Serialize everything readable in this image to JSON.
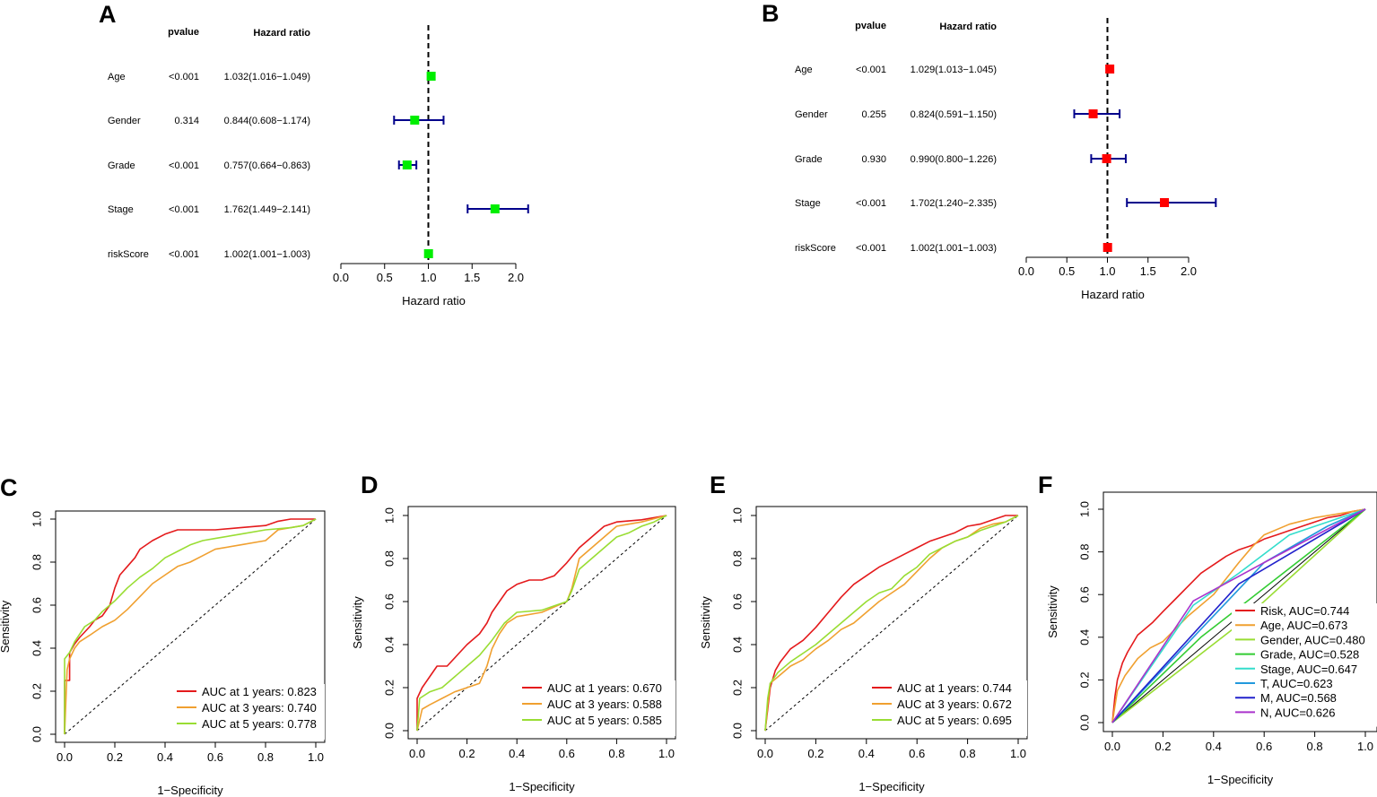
{
  "colors": {
    "axis": "#000000",
    "ci": "#00008b",
    "forest_a_marker": "#00ee00",
    "forest_b_marker": "#ff0000",
    "auc_1": "#e41a1c",
    "auc_3": "#f0a030",
    "auc_5": "#99dd33",
    "risk": "#e41a1c",
    "age": "#f0a030",
    "gender": "#99dd33",
    "grade": "#33cc33",
    "stage": "#33ddcc",
    "t": "#2299dd",
    "m": "#2222cc",
    "n": "#aa33cc"
  },
  "chart_data": [
    {
      "panel": "A",
      "type": "forest",
      "col_pvalue": "pvalue",
      "col_hr": "Hazard ratio",
      "xlabel": "Hazard ratio",
      "xlim": [
        0,
        2
      ],
      "xticks": [
        "0.0",
        "0.5",
        "1.0",
        "1.5",
        "2.0"
      ],
      "reference": 1,
      "rows": [
        {
          "label": "Age",
          "pvalue": "<0.001",
          "hr_text": "1.032(1.016−1.049)",
          "hr": 1.032,
          "lo": 1.016,
          "hi": 1.049
        },
        {
          "label": "Gender",
          "pvalue": "0.314",
          "hr_text": "0.844(0.608−1.174)",
          "hr": 0.844,
          "lo": 0.608,
          "hi": 1.174
        },
        {
          "label": "Grade",
          "pvalue": "<0.001",
          "hr_text": "0.757(0.664−0.863)",
          "hr": 0.757,
          "lo": 0.664,
          "hi": 0.863
        },
        {
          "label": "Stage",
          "pvalue": "<0.001",
          "hr_text": "1.762(1.449−2.141)",
          "hr": 1.762,
          "lo": 1.449,
          "hi": 2.141
        },
        {
          "label": "riskScore",
          "pvalue": "<0.001",
          "hr_text": "1.002(1.001−1.003)",
          "hr": 1.002,
          "lo": 1.001,
          "hi": 1.003
        }
      ]
    },
    {
      "panel": "B",
      "type": "forest",
      "col_pvalue": "pvalue",
      "col_hr": "Hazard ratio",
      "xlabel": "Hazard ratio",
      "xlim": [
        0,
        2
      ],
      "xticks": [
        "0.0",
        "0.5",
        "1.0",
        "1.5",
        "2.0"
      ],
      "reference": 1,
      "rows": [
        {
          "label": "Age",
          "pvalue": "<0.001",
          "hr_text": "1.029(1.013−1.045)",
          "hr": 1.029,
          "lo": 1.013,
          "hi": 1.045
        },
        {
          "label": "Gender",
          "pvalue": "0.255",
          "hr_text": "0.824(0.591−1.150)",
          "hr": 0.824,
          "lo": 0.591,
          "hi": 1.15
        },
        {
          "label": "Grade",
          "pvalue": "0.930",
          "hr_text": "0.990(0.800−1.226)",
          "hr": 0.99,
          "lo": 0.8,
          "hi": 1.226
        },
        {
          "label": "Stage",
          "pvalue": "<0.001",
          "hr_text": "1.702(1.240−2.335)",
          "hr": 1.702,
          "lo": 1.24,
          "hi": 2.335
        },
        {
          "label": "riskScore",
          "pvalue": "<0.001",
          "hr_text": "1.002(1.001−1.003)",
          "hr": 1.002,
          "lo": 1.001,
          "hi": 1.003
        }
      ]
    },
    {
      "panel": "C",
      "type": "line",
      "xlabel": "1−Specificity",
      "ylabel": "Sensitivity",
      "xlim": [
        0,
        1
      ],
      "ylim": [
        0,
        1
      ],
      "xticks": [
        "0.0",
        "0.2",
        "0.4",
        "0.6",
        "0.8",
        "1.0"
      ],
      "yticks": [
        "0.0",
        "0.2",
        "0.4",
        "0.6",
        "0.8",
        "1.0"
      ],
      "diagonal": true,
      "series": [
        {
          "name": "AUC at 1 years: 0.823",
          "color_key": "auc_1",
          "x": [
            0,
            0,
            0.02,
            0.02,
            0.04,
            0.06,
            0.1,
            0.12,
            0.15,
            0.18,
            0.2,
            0.22,
            0.25,
            0.28,
            0.3,
            0.35,
            0.4,
            0.45,
            0.5,
            0.6,
            0.7,
            0.8,
            0.85,
            0.9,
            1.0
          ],
          "y": [
            0,
            0.25,
            0.25,
            0.38,
            0.42,
            0.45,
            0.5,
            0.53,
            0.55,
            0.6,
            0.68,
            0.74,
            0.78,
            0.82,
            0.86,
            0.9,
            0.93,
            0.95,
            0.95,
            0.95,
            0.96,
            0.97,
            0.99,
            1.0,
            1.0
          ]
        },
        {
          "name": "AUC at 3 years: 0.740",
          "color_key": "auc_3",
          "x": [
            0,
            0.01,
            0.02,
            0.04,
            0.06,
            0.1,
            0.15,
            0.2,
            0.25,
            0.3,
            0.35,
            0.4,
            0.45,
            0.5,
            0.55,
            0.6,
            0.7,
            0.8,
            0.85,
            0.9,
            0.95,
            1.0
          ],
          "y": [
            0,
            0.3,
            0.35,
            0.4,
            0.43,
            0.46,
            0.5,
            0.53,
            0.58,
            0.64,
            0.7,
            0.74,
            0.78,
            0.8,
            0.83,
            0.86,
            0.88,
            0.9,
            0.95,
            0.96,
            0.97,
            1.0
          ]
        },
        {
          "name": "AUC at 5 years: 0.778",
          "color_key": "auc_5",
          "x": [
            0,
            0,
            0.02,
            0.04,
            0.08,
            0.12,
            0.15,
            0.2,
            0.25,
            0.3,
            0.35,
            0.4,
            0.45,
            0.5,
            0.55,
            0.6,
            0.7,
            0.8,
            0.9,
            0.95,
            1.0
          ],
          "y": [
            0,
            0.35,
            0.38,
            0.43,
            0.5,
            0.53,
            0.57,
            0.62,
            0.68,
            0.73,
            0.77,
            0.82,
            0.85,
            0.88,
            0.9,
            0.91,
            0.93,
            0.95,
            0.96,
            0.97,
            1.0
          ]
        }
      ]
    },
    {
      "panel": "D",
      "type": "line",
      "xlabel": "1−Specificity",
      "ylabel": "Sensitivity",
      "xlim": [
        0,
        1
      ],
      "ylim": [
        0,
        1
      ],
      "xticks": [
        "0.0",
        "0.2",
        "0.4",
        "0.6",
        "0.8",
        "1.0"
      ],
      "yticks": [
        "0.0",
        "0.2",
        "0.4",
        "0.6",
        "0.8",
        "1.0"
      ],
      "diagonal": true,
      "series": [
        {
          "name": "AUC at 1 years: 0.670",
          "color_key": "auc_1",
          "x": [
            0,
            0,
            0.02,
            0.05,
            0.08,
            0.12,
            0.16,
            0.2,
            0.25,
            0.28,
            0.3,
            0.33,
            0.36,
            0.4,
            0.45,
            0.5,
            0.55,
            0.6,
            0.65,
            0.7,
            0.75,
            0.8,
            0.9,
            1.0
          ],
          "y": [
            0,
            0.15,
            0.2,
            0.25,
            0.3,
            0.3,
            0.35,
            0.4,
            0.45,
            0.5,
            0.55,
            0.6,
            0.65,
            0.68,
            0.7,
            0.7,
            0.72,
            0.78,
            0.85,
            0.9,
            0.95,
            0.97,
            0.98,
            1.0
          ]
        },
        {
          "name": "AUC at 3 years: 0.588",
          "color_key": "auc_3",
          "x": [
            0,
            0.02,
            0.05,
            0.1,
            0.15,
            0.2,
            0.25,
            0.28,
            0.3,
            0.33,
            0.36,
            0.4,
            0.5,
            0.6,
            0.62,
            0.65,
            0.7,
            0.75,
            0.8,
            0.85,
            0.9,
            1.0
          ],
          "y": [
            0,
            0.1,
            0.12,
            0.15,
            0.18,
            0.2,
            0.22,
            0.3,
            0.38,
            0.45,
            0.5,
            0.53,
            0.55,
            0.6,
            0.66,
            0.8,
            0.85,
            0.9,
            0.95,
            0.96,
            0.97,
            1.0
          ]
        },
        {
          "name": "AUC at 5 years: 0.585",
          "color_key": "auc_5",
          "x": [
            0,
            0.01,
            0.05,
            0.1,
            0.15,
            0.2,
            0.25,
            0.3,
            0.35,
            0.4,
            0.5,
            0.55,
            0.6,
            0.62,
            0.65,
            0.7,
            0.75,
            0.8,
            0.85,
            0.9,
            0.95,
            1.0
          ],
          "y": [
            0,
            0.15,
            0.18,
            0.2,
            0.25,
            0.3,
            0.35,
            0.42,
            0.5,
            0.55,
            0.56,
            0.58,
            0.6,
            0.65,
            0.75,
            0.8,
            0.85,
            0.9,
            0.92,
            0.95,
            0.97,
            1.0
          ]
        }
      ]
    },
    {
      "panel": "E",
      "type": "line",
      "xlabel": "1−Specificity",
      "ylabel": "Sensitivity",
      "xlim": [
        0,
        1
      ],
      "ylim": [
        0,
        1
      ],
      "xticks": [
        "0.0",
        "0.2",
        "0.4",
        "0.6",
        "0.8",
        "1.0"
      ],
      "yticks": [
        "0.0",
        "0.2",
        "0.4",
        "0.6",
        "0.8",
        "1.0"
      ],
      "diagonal": true,
      "series": [
        {
          "name": "AUC at 1 years: 0.744",
          "color_key": "auc_1",
          "x": [
            0,
            0.01,
            0.02,
            0.04,
            0.06,
            0.1,
            0.15,
            0.2,
            0.25,
            0.3,
            0.35,
            0.4,
            0.45,
            0.5,
            0.55,
            0.6,
            0.65,
            0.7,
            0.75,
            0.8,
            0.85,
            0.9,
            0.95,
            1.0
          ],
          "y": [
            0,
            0.1,
            0.2,
            0.28,
            0.32,
            0.38,
            0.42,
            0.48,
            0.55,
            0.62,
            0.68,
            0.72,
            0.76,
            0.79,
            0.82,
            0.85,
            0.88,
            0.9,
            0.92,
            0.95,
            0.96,
            0.98,
            1.0,
            1.0
          ]
        },
        {
          "name": "AUC at 3 years: 0.672",
          "color_key": "auc_3",
          "x": [
            0,
            0.01,
            0.02,
            0.05,
            0.1,
            0.15,
            0.2,
            0.25,
            0.3,
            0.35,
            0.4,
            0.45,
            0.5,
            0.55,
            0.6,
            0.65,
            0.7,
            0.75,
            0.8,
            0.85,
            0.9,
            0.95,
            1.0
          ],
          "y": [
            0,
            0.12,
            0.22,
            0.25,
            0.3,
            0.33,
            0.38,
            0.42,
            0.47,
            0.5,
            0.55,
            0.6,
            0.64,
            0.68,
            0.74,
            0.8,
            0.85,
            0.88,
            0.9,
            0.94,
            0.96,
            0.97,
            1.0
          ]
        },
        {
          "name": "AUC at 5 years: 0.695",
          "color_key": "auc_5",
          "x": [
            0,
            0.01,
            0.02,
            0.05,
            0.1,
            0.15,
            0.2,
            0.25,
            0.3,
            0.35,
            0.4,
            0.45,
            0.5,
            0.55,
            0.6,
            0.65,
            0.7,
            0.75,
            0.8,
            0.85,
            0.9,
            0.95,
            1.0
          ],
          "y": [
            0,
            0.15,
            0.22,
            0.27,
            0.32,
            0.36,
            0.4,
            0.45,
            0.5,
            0.55,
            0.6,
            0.64,
            0.66,
            0.72,
            0.76,
            0.82,
            0.85,
            0.88,
            0.9,
            0.93,
            0.95,
            0.97,
            1.0
          ]
        }
      ]
    },
    {
      "panel": "F",
      "type": "line",
      "xlabel": "1−Specificity",
      "ylabel": "Sensitivity",
      "xlim": [
        0,
        1
      ],
      "ylim": [
        0,
        1
      ],
      "xticks": [
        "0.0",
        "0.2",
        "0.4",
        "0.6",
        "0.8",
        "1.0"
      ],
      "yticks": [
        "0.0",
        "0.2",
        "0.4",
        "0.6",
        "0.8",
        "1.0"
      ],
      "diagonal": true,
      "series": [
        {
          "name": "Risk, AUC=0.744",
          "color_key": "risk",
          "x": [
            0,
            0.01,
            0.02,
            0.04,
            0.06,
            0.08,
            0.1,
            0.13,
            0.16,
            0.2,
            0.25,
            0.3,
            0.35,
            0.4,
            0.45,
            0.5,
            0.55,
            0.6,
            0.65,
            0.7,
            0.75,
            0.8,
            0.85,
            0.9,
            0.95,
            1.0
          ],
          "y": [
            0,
            0.12,
            0.2,
            0.28,
            0.33,
            0.37,
            0.41,
            0.44,
            0.47,
            0.52,
            0.58,
            0.64,
            0.7,
            0.74,
            0.78,
            0.81,
            0.83,
            0.86,
            0.88,
            0.9,
            0.92,
            0.94,
            0.96,
            0.97,
            0.99,
            1.0
          ]
        },
        {
          "name": "Age, AUC=0.673",
          "color_key": "age",
          "x": [
            0,
            0.02,
            0.05,
            0.1,
            0.15,
            0.2,
            0.3,
            0.4,
            0.5,
            0.55,
            0.6,
            0.7,
            0.8,
            0.9,
            1.0
          ],
          "y": [
            0,
            0.15,
            0.22,
            0.3,
            0.35,
            0.38,
            0.5,
            0.6,
            0.75,
            0.82,
            0.88,
            0.93,
            0.96,
            0.98,
            1.0
          ]
        },
        {
          "name": "Gender, AUC=0.480",
          "color_key": "gender",
          "x": [
            0,
            0.5,
            1.0
          ],
          "y": [
            0,
            0.46,
            1.0
          ]
        },
        {
          "name": "Grade, AUC=0.528",
          "color_key": "grade",
          "x": [
            0,
            0.35,
            1.0
          ],
          "y": [
            0,
            0.4,
            1.0
          ]
        },
        {
          "name": "Stage, AUC=0.647",
          "color_key": "stage",
          "x": [
            0,
            0.32,
            0.5,
            0.7,
            1.0
          ],
          "y": [
            0,
            0.55,
            0.7,
            0.88,
            1.0
          ]
        },
        {
          "name": "T, AUC=0.623",
          "color_key": "t",
          "x": [
            0,
            0.6,
            0.85,
            1.0
          ],
          "y": [
            0,
            0.75,
            0.92,
            1.0
          ]
        },
        {
          "name": "M, AUC=0.568",
          "color_key": "m",
          "x": [
            0,
            0.5,
            1.0
          ],
          "y": [
            0,
            0.65,
            1.0
          ]
        },
        {
          "name": "N, AUC=0.626",
          "color_key": "n",
          "x": [
            0,
            0.32,
            0.6,
            1.0
          ],
          "y": [
            0,
            0.57,
            0.75,
            1.0
          ]
        }
      ]
    }
  ]
}
